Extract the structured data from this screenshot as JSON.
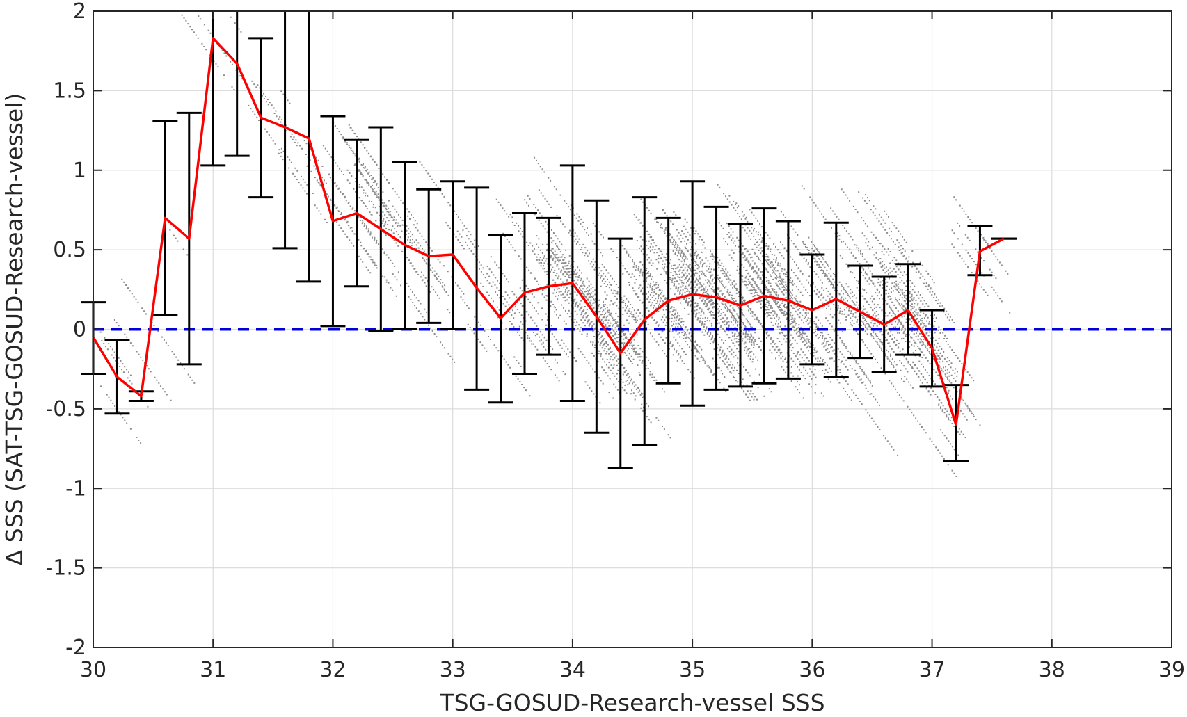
{
  "chart_data": {
    "type": "scatter",
    "xlabel": "TSG-GOSUD-Research-vessel SSS",
    "ylabel": "Δ SSS (SAT-TSG-GOSUD-Research-vessel)",
    "xlim": [
      30,
      39
    ],
    "ylim": [
      -2,
      2
    ],
    "xticks": [
      30,
      31,
      32,
      33,
      34,
      35,
      36,
      37,
      38,
      39
    ],
    "yticks": [
      -2,
      -1.5,
      -1,
      -0.5,
      0,
      0.5,
      1,
      1.5,
      2
    ],
    "xtick_labels": [
      "30",
      "31",
      "32",
      "33",
      "34",
      "35",
      "36",
      "37",
      "38",
      "39"
    ],
    "ytick_labels": [
      "-2",
      "-1.5",
      "-1",
      "-0.5",
      "0",
      "0.5",
      "1",
      "1.5",
      "2"
    ],
    "grid": true,
    "colors": {
      "scatter": "#8c8c8c",
      "mean_line": "#ff0000",
      "error_bars": "#000000",
      "zero_line": "#0000dd",
      "grid": "#dcdcdc",
      "axes": "#262626"
    },
    "zero_line": {
      "y": 0,
      "style": "dashed"
    },
    "binned_series": {
      "x": [
        30.0,
        30.2,
        30.4,
        30.6,
        30.8,
        31.0,
        31.2,
        31.4,
        31.6,
        31.8,
        32.0,
        32.2,
        32.4,
        32.6,
        32.8,
        33.0,
        33.2,
        33.4,
        33.6,
        33.8,
        34.0,
        34.2,
        34.4,
        34.6,
        34.8,
        35.0,
        35.2,
        35.4,
        35.6,
        35.8,
        36.0,
        36.2,
        36.4,
        36.6,
        36.8,
        37.0,
        37.2,
        37.4,
        37.6
      ],
      "mean": [
        -0.05,
        -0.3,
        -0.42,
        0.7,
        0.57,
        1.83,
        1.67,
        1.33,
        1.27,
        1.2,
        0.68,
        0.73,
        0.63,
        0.53,
        0.46,
        0.47,
        0.26,
        0.07,
        0.23,
        0.27,
        0.29,
        0.08,
        -0.15,
        0.06,
        0.18,
        0.22,
        0.2,
        0.15,
        0.21,
        0.18,
        0.12,
        0.19,
        0.11,
        0.03,
        0.12,
        -0.12,
        -0.6,
        0.49,
        0.57
      ],
      "lower": [
        -0.28,
        -0.53,
        -0.45,
        0.09,
        -0.22,
        1.03,
        1.09,
        0.83,
        0.51,
        0.3,
        0.02,
        0.27,
        -0.01,
        0.0,
        0.04,
        0.0,
        -0.38,
        -0.46,
        -0.28,
        -0.16,
        -0.45,
        -0.65,
        -0.87,
        -0.73,
        -0.34,
        -0.48,
        -0.38,
        -0.36,
        -0.34,
        -0.31,
        -0.22,
        -0.3,
        -0.18,
        -0.27,
        -0.16,
        -0.36,
        -0.83,
        0.34,
        0.57
      ],
      "upper": [
        0.17,
        -0.07,
        -0.39,
        1.31,
        1.36,
        2.0,
        2.0,
        1.83,
        2.0,
        2.0,
        1.34,
        1.19,
        1.27,
        1.05,
        0.88,
        0.93,
        0.89,
        0.59,
        0.73,
        0.7,
        1.03,
        0.81,
        0.57,
        0.83,
        0.7,
        0.93,
        0.77,
        0.66,
        0.76,
        0.68,
        0.47,
        0.67,
        0.4,
        0.33,
        0.41,
        0.12,
        -0.35,
        0.65,
        0.57
      ]
    }
  }
}
